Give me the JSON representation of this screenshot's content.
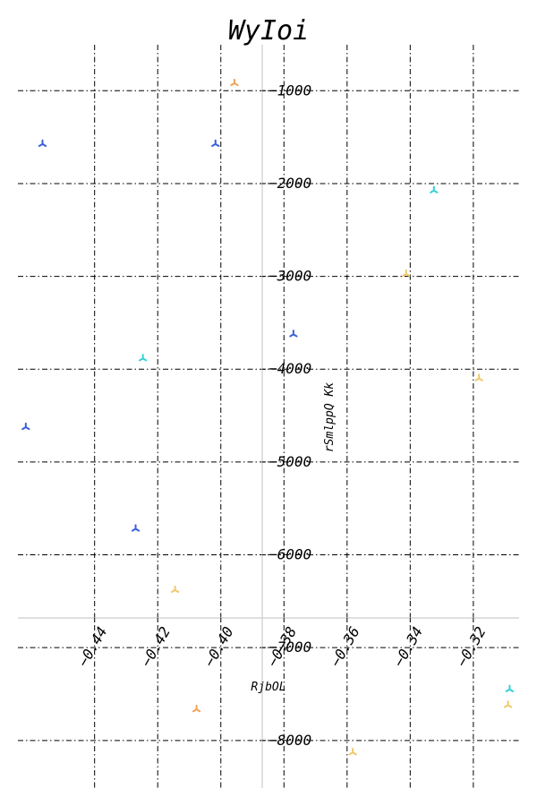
{
  "chart_data": {
    "type": "scatter",
    "title": "WyIoi",
    "xlabel": "RjbOL",
    "ylabel": "rSmlppQ Kk",
    "xlim": [
      -0.4643,
      -0.3055
    ],
    "ylim": [
      -8513,
      -505
    ],
    "x_ticks": [
      -0.44,
      -0.42,
      -0.4,
      -0.38,
      -0.36,
      -0.34,
      -0.32
    ],
    "x_tick_labels": [
      "−0.44",
      "−0.42",
      "−0.40",
      "−0.38",
      "−0.36",
      "−0.34",
      "−0.32"
    ],
    "y_ticks": [
      -1000,
      -2000,
      -3000,
      -4000,
      -5000,
      -6000,
      -7000,
      -8000
    ],
    "y_tick_labels": [
      "−1000",
      "−2000",
      "−3000",
      "−4000",
      "−5000",
      "−6000",
      "−7000",
      "−8000"
    ],
    "grid": true,
    "marker": "tri_down",
    "points": [
      {
        "x": -0.4565,
        "y": -1575,
        "color": "#3a5fd8"
      },
      {
        "x": -0.4017,
        "y": -1575,
        "color": "#3a5fd8"
      },
      {
        "x": -0.3957,
        "y": -920,
        "color": "#f2a25a"
      },
      {
        "x": -0.3325,
        "y": -2075,
        "color": "#35d0d6"
      },
      {
        "x": -0.3413,
        "y": -2975,
        "color": "#f0c86a"
      },
      {
        "x": -0.377,
        "y": -3625,
        "color": "#3a5fd8"
      },
      {
        "x": -0.4247,
        "y": -3885,
        "color": "#35d0d6"
      },
      {
        "x": -0.3182,
        "y": -4100,
        "color": "#f0c86a"
      },
      {
        "x": -0.4618,
        "y": -4625,
        "color": "#3a5fd8"
      },
      {
        "x": -0.427,
        "y": -5720,
        "color": "#3a5fd8"
      },
      {
        "x": -0.4145,
        "y": -6380,
        "color": "#f0c86a"
      },
      {
        "x": -0.4077,
        "y": -7665,
        "color": "#f2a25a"
      },
      {
        "x": -0.3085,
        "y": -7450,
        "color": "#35d0d6"
      },
      {
        "x": -0.309,
        "y": -7620,
        "color": "#f0c86a"
      },
      {
        "x": -0.3582,
        "y": -8130,
        "color": "#f0c86a"
      }
    ]
  }
}
